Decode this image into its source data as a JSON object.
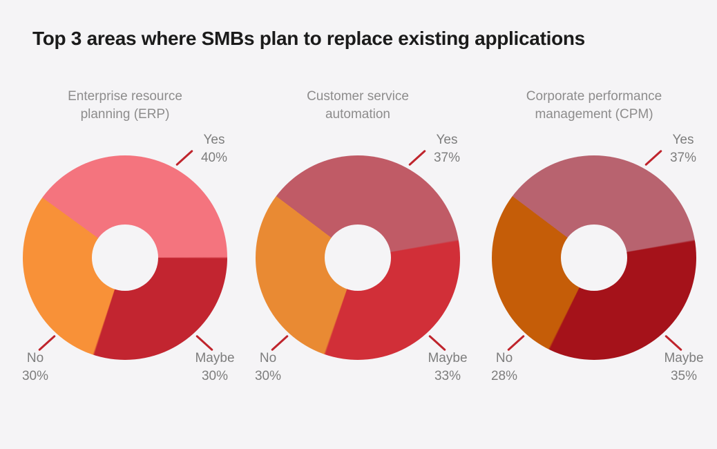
{
  "page": {
    "title": "Top 3 areas where SMBs plan to replace existing applications",
    "background_color": "#f5f4f6",
    "title_color": "#1b1b1b"
  },
  "labels": {
    "text_color": "#7d7d7d",
    "chart_title_color": "#8d8c8c",
    "leader_line_color": "#bf242c"
  },
  "chart_data": [
    {
      "type": "pie",
      "variant": "donut",
      "title": "Enterprise resource planning (ERP)",
      "title_lines": [
        "Enterprise resource",
        "planning (ERP)"
      ],
      "start_angle_deg": -54,
      "legend_position": "callout-labels",
      "slices": [
        {
          "label": "Yes",
          "value": 40,
          "pct": "40%",
          "color": "#f4747e"
        },
        {
          "label": "Maybe",
          "value": 30,
          "pct": "30%",
          "color": "#c22530"
        },
        {
          "label": "No",
          "value": 30,
          "pct": "30%",
          "color": "#f89138"
        }
      ]
    },
    {
      "type": "pie",
      "variant": "donut",
      "title": "Customer service automation",
      "title_lines": [
        "Customer service",
        "automation"
      ],
      "start_angle_deg": -53,
      "legend_position": "callout-labels",
      "slices": [
        {
          "label": "Yes",
          "value": 37,
          "pct": "37%",
          "color": "#c05b66"
        },
        {
          "label": "Maybe",
          "value": 33,
          "pct": "33%",
          "color": "#d12f38"
        },
        {
          "label": "No",
          "value": 30,
          "pct": "30%",
          "color": "#e98a33"
        }
      ]
    },
    {
      "type": "pie",
      "variant": "donut",
      "title": "Corporate performance management (CPM)",
      "title_lines": [
        "Corporate performance",
        "management (CPM)"
      ],
      "start_angle_deg": -53,
      "legend_position": "callout-labels",
      "slices": [
        {
          "label": "Yes",
          "value": 37,
          "pct": "37%",
          "color": "#b8636f"
        },
        {
          "label": "Maybe",
          "value": 35,
          "pct": "35%",
          "color": "#a5121a"
        },
        {
          "label": "No",
          "value": 28,
          "pct": "28%",
          "color": "#c55d08"
        }
      ]
    }
  ]
}
